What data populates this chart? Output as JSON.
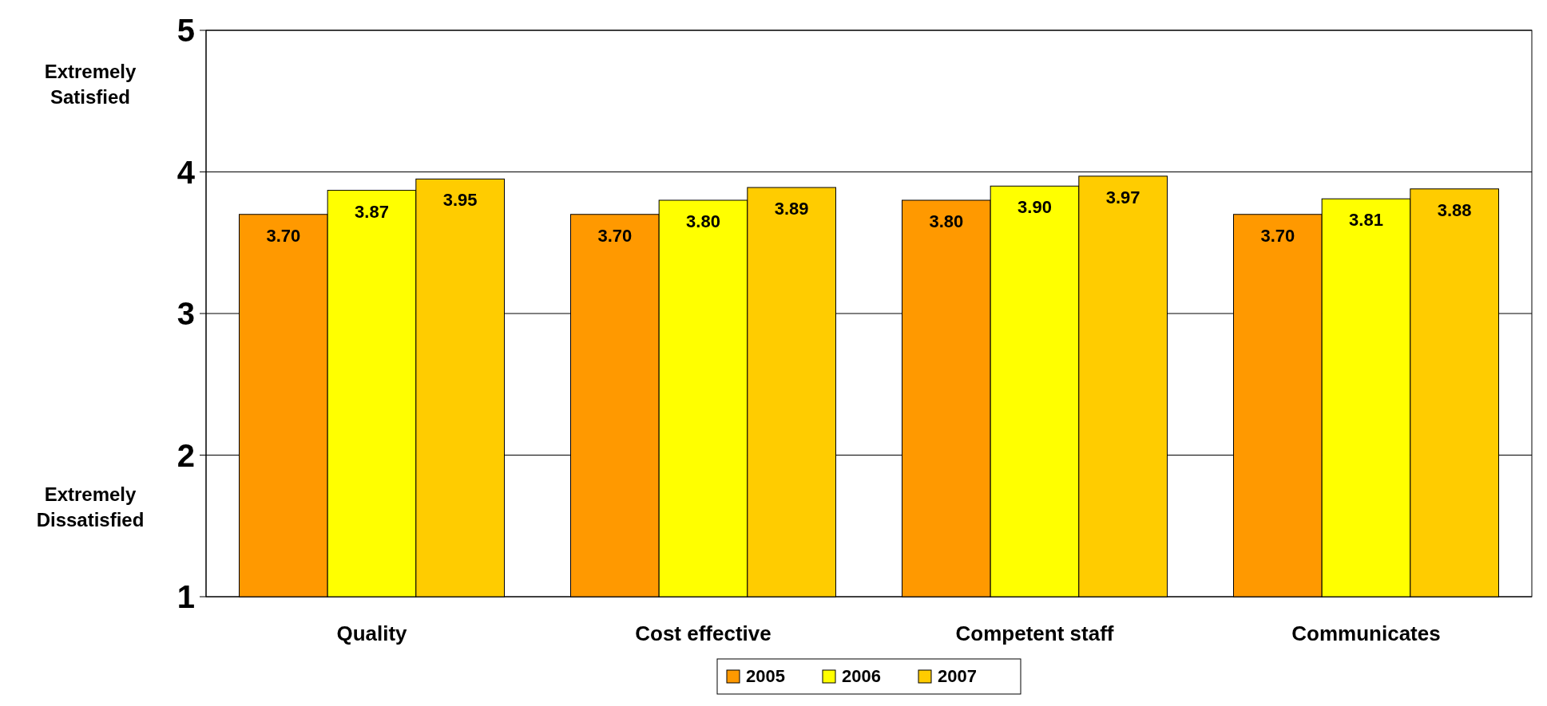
{
  "chart_data": {
    "type": "bar",
    "categories": [
      "Quality",
      "Cost effective",
      "Competent staff",
      "Communicates"
    ],
    "series": [
      {
        "name": "2005",
        "color": "#ff9900",
        "values": [
          3.7,
          3.7,
          3.8,
          3.7
        ],
        "value_labels": [
          "3.70",
          "3.70",
          "3.80",
          "3.70"
        ]
      },
      {
        "name": "2006",
        "color": "#ffff00",
        "values": [
          3.87,
          3.8,
          3.9,
          3.81
        ],
        "value_labels": [
          "3.87",
          "3.80",
          "3.90",
          "3.81"
        ]
      },
      {
        "name": "2007",
        "color": "#ffcc00",
        "values": [
          3.95,
          3.89,
          3.97,
          3.88
        ],
        "value_labels": [
          "3.95",
          "3.89",
          "3.97",
          "3.88"
        ]
      }
    ],
    "ylim": [
      1,
      5
    ],
    "yticks": [
      1,
      2,
      3,
      4,
      5
    ],
    "grid": "y",
    "legend": "bottom",
    "annotations": [
      "Extremely Satisfied",
      "Extremely Dissatisfied"
    ]
  }
}
